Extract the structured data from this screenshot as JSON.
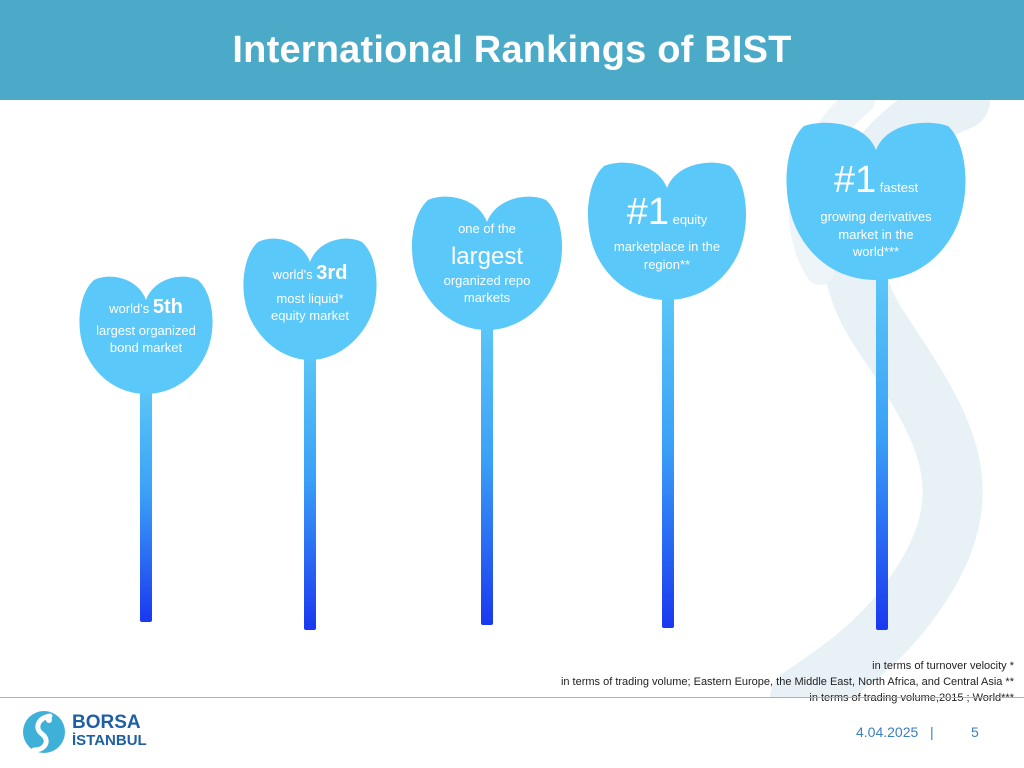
{
  "title": "International Rankings of BIST",
  "flowers": [
    {
      "l1_small": "world's",
      "l1_big": "5th",
      "l2": "largest organized",
      "l3": "bond market"
    },
    {
      "l1_small": "world's",
      "l1_big": "3rd",
      "l2": "most liquid*",
      "l3": "equity market"
    },
    {
      "l1": "one of the",
      "l2_big": "largest",
      "l3": "organized repo",
      "l4": "markets"
    },
    {
      "l1_big": "#1",
      "l1_small": "equity",
      "l2": "marketplace in the",
      "l3": "region**"
    },
    {
      "l1_big": "#1",
      "l1_small": "fastest",
      "l2": "growing  derivatives",
      "l3": "market in the",
      "l4": "world***"
    }
  ],
  "footnotes": [
    "in terms of turnover velocity *",
    "in terms of trading volume; Eastern Europe, the Middle East, North Africa, and Central Asia **",
    "in terms of trading volume,2015 ; World***"
  ],
  "footer": {
    "logo_line1": "BORSA",
    "logo_line2": "İSTANBUL",
    "date": "4.04.2025",
    "separator": "|",
    "page": "5"
  },
  "colors": {
    "header": "#4aaac8",
    "flower": "#5ac8f8",
    "stem_bottom": "#1a38f0"
  }
}
